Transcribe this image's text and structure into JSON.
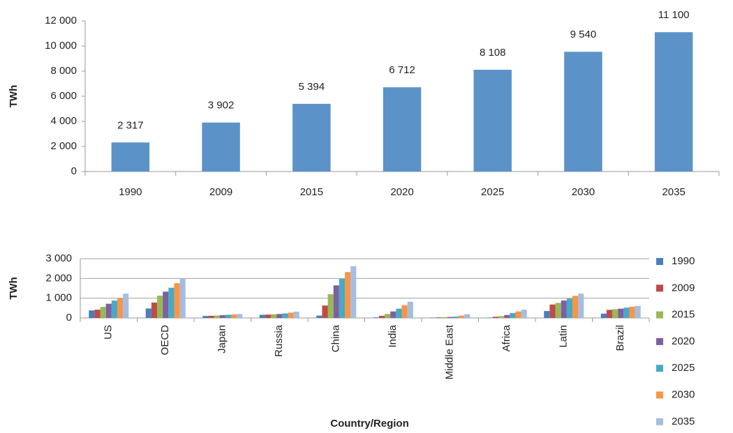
{
  "chart_data": [
    {
      "type": "bar",
      "ylabel": "TWh",
      "categories": [
        "1990",
        "2009",
        "2015",
        "2020",
        "2025",
        "2030",
        "2035"
      ],
      "values": [
        2317,
        3902,
        5394,
        6712,
        8108,
        9540,
        11100
      ],
      "value_labels": [
        "2 317",
        "3 902",
        "5 394",
        "6 712",
        "8 108",
        "9 540",
        "11 100"
      ],
      "color": "#5b93c9",
      "ylim": [
        0,
        12000
      ],
      "yticks": [
        0,
        {
          "value": 2000,
          "label": "2 000"
        },
        {
          "value": 4000,
          "label": "4 000"
        },
        {
          "value": 6000,
          "label": "6 000"
        },
        {
          "value": 8000,
          "label": "8 000"
        },
        {
          "value": 10000,
          "label": "10 000"
        },
        {
          "value": 12000,
          "label": "12 000"
        }
      ],
      "grid": false
    },
    {
      "type": "bar",
      "ylabel": "TWh",
      "xlabel": "Country/Region",
      "categories": [
        "US",
        "OECD",
        "Japan",
        "Russia",
        "China",
        "India",
        "Middle East",
        "Africa",
        "Latin",
        "Brazil"
      ],
      "series": [
        {
          "name": "1990",
          "color": "#4a7ebb",
          "values": [
            380,
            480,
            100,
            160,
            120,
            30,
            20,
            20,
            350,
            220
          ]
        },
        {
          "name": "2009",
          "color": "#be4b48",
          "values": [
            420,
            780,
            110,
            170,
            630,
            110,
            30,
            60,
            680,
            410
          ]
        },
        {
          "name": "2015",
          "color": "#98b954",
          "values": [
            560,
            1130,
            120,
            180,
            1200,
            200,
            40,
            90,
            760,
            440
          ]
        },
        {
          "name": "2020",
          "color": "#7d60a0",
          "values": [
            720,
            1330,
            140,
            200,
            1650,
            330,
            50,
            150,
            880,
            470
          ]
        },
        {
          "name": "2025",
          "color": "#46aac5",
          "values": [
            880,
            1530,
            160,
            230,
            1980,
            470,
            70,
            250,
            980,
            520
          ]
        },
        {
          "name": "2030",
          "color": "#f79646",
          "values": [
            1000,
            1760,
            180,
            270,
            2320,
            650,
            120,
            330,
            1120,
            570
          ]
        },
        {
          "name": "2035",
          "color": "#a5bde0",
          "values": [
            1230,
            2000,
            200,
            320,
            2620,
            820,
            190,
            420,
            1230,
            610
          ]
        }
      ],
      "ylim": [
        0,
        3000
      ],
      "yticks": [
        0,
        {
          "value": 1000,
          "label": "1 000"
        },
        {
          "value": 2000,
          "label": "2 000"
        },
        {
          "value": 3000,
          "label": "3 000"
        }
      ],
      "grid": true,
      "legend": "right"
    }
  ]
}
